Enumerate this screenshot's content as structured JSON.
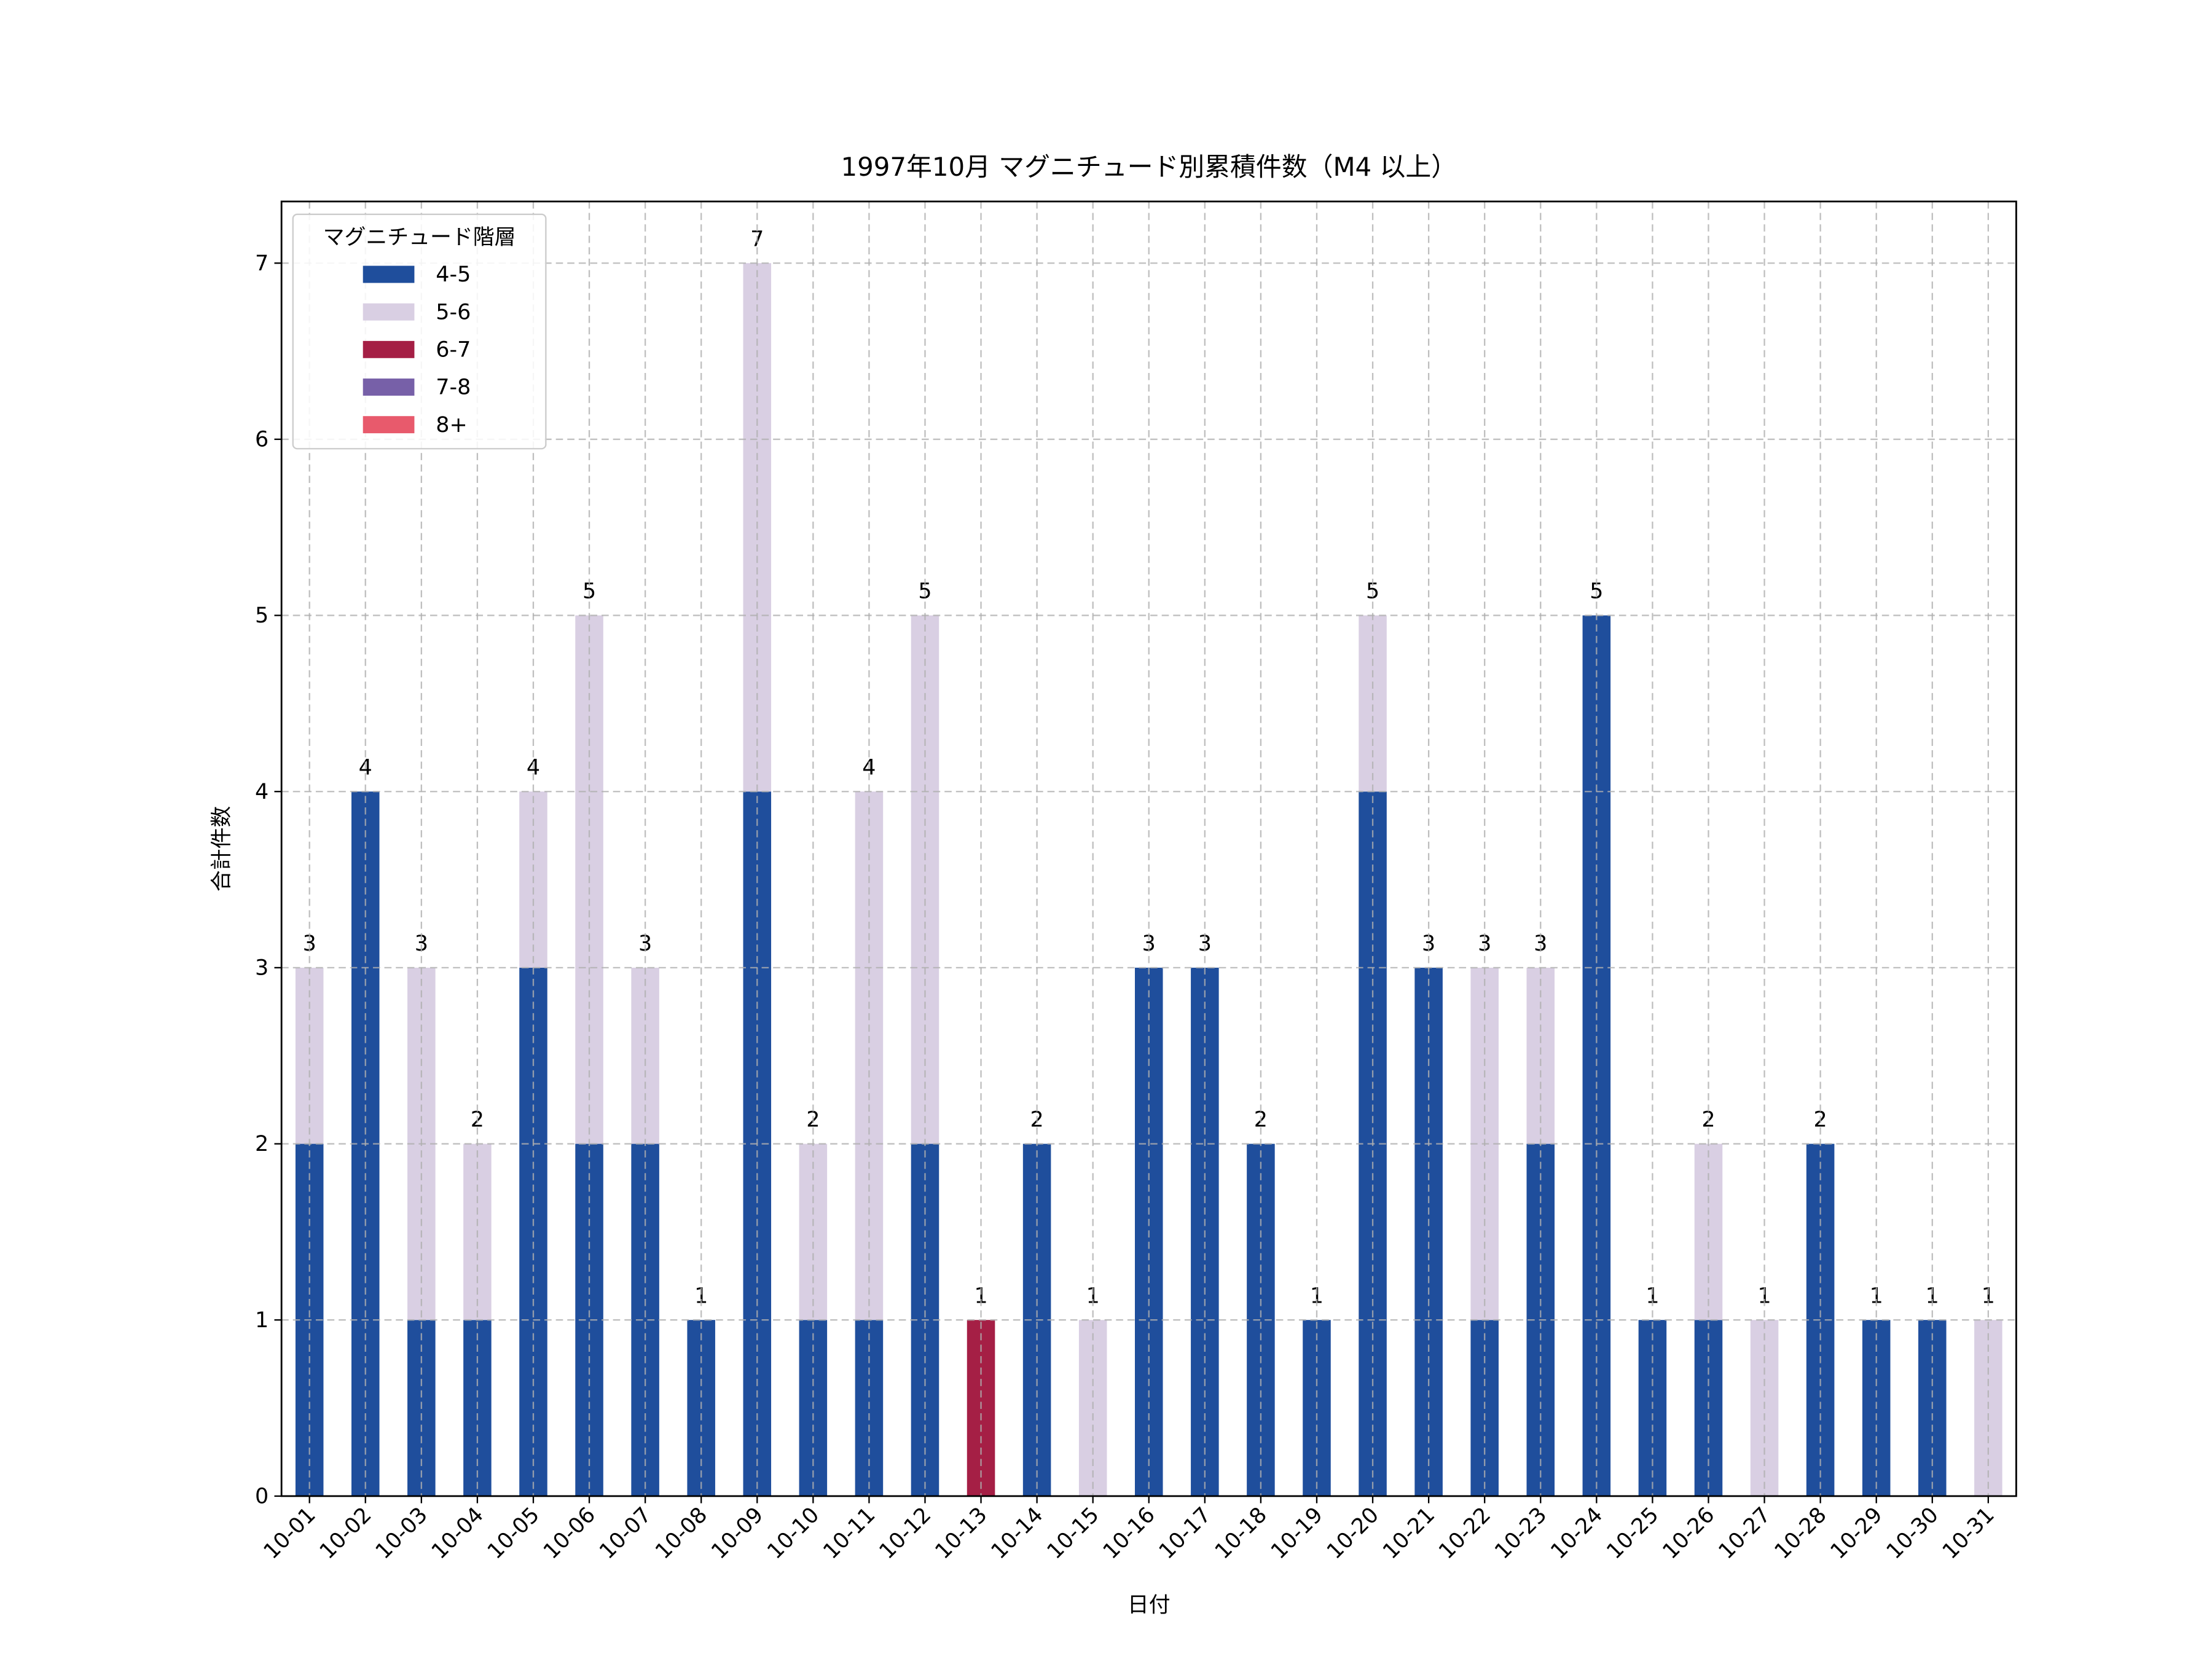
{
  "chart_data": {
    "type": "stacked_bar",
    "title": "1997年10月 マグニチュード別累積件数（M4 以上）",
    "x_label": "日付",
    "y_label": "合計件数",
    "categories": [
      "10-01",
      "10-02",
      "10-03",
      "10-04",
      "10-05",
      "10-06",
      "10-07",
      "10-08",
      "10-09",
      "10-10",
      "10-11",
      "10-12",
      "10-13",
      "10-14",
      "10-15",
      "10-16",
      "10-17",
      "10-18",
      "10-19",
      "10-20",
      "10-21",
      "10-22",
      "10-23",
      "10-24",
      "10-25",
      "10-26",
      "10-27",
      "10-28",
      "10-29",
      "10-30",
      "10-31"
    ],
    "series": [
      {
        "name": "4-5",
        "color": "#1f4e9c",
        "values": [
          2,
          4,
          1,
          1,
          3,
          2,
          2,
          1,
          4,
          1,
          1,
          2,
          0,
          2,
          0,
          3,
          3,
          2,
          1,
          4,
          3,
          1,
          2,
          5,
          1,
          1,
          0,
          2,
          1,
          1,
          0
        ]
      },
      {
        "name": "5-6",
        "color": "#d9cfe3",
        "values": [
          1,
          0,
          2,
          1,
          1,
          3,
          1,
          0,
          3,
          1,
          3,
          3,
          0,
          0,
          1,
          0,
          0,
          0,
          0,
          1,
          0,
          2,
          1,
          0,
          0,
          1,
          1,
          0,
          0,
          0,
          1
        ]
      },
      {
        "name": "6-7",
        "color": "#a51f45",
        "values": [
          0,
          0,
          0,
          0,
          0,
          0,
          0,
          0,
          0,
          0,
          0,
          0,
          1,
          0,
          0,
          0,
          0,
          0,
          0,
          0,
          0,
          0,
          0,
          0,
          0,
          0,
          0,
          0,
          0,
          0,
          0
        ]
      },
      {
        "name": "7-8",
        "color": "#7760a8",
        "values": [
          0,
          0,
          0,
          0,
          0,
          0,
          0,
          0,
          0,
          0,
          0,
          0,
          0,
          0,
          0,
          0,
          0,
          0,
          0,
          0,
          0,
          0,
          0,
          0,
          0,
          0,
          0,
          0,
          0,
          0,
          0
        ]
      },
      {
        "name": "8+",
        "color": "#e85a6c",
        "values": [
          0,
          0,
          0,
          0,
          0,
          0,
          0,
          0,
          0,
          0,
          0,
          0,
          0,
          0,
          0,
          0,
          0,
          0,
          0,
          0,
          0,
          0,
          0,
          0,
          0,
          0,
          0,
          0,
          0,
          0,
          0
        ]
      }
    ],
    "totals": [
      3,
      4,
      3,
      2,
      4,
      5,
      3,
      1,
      7,
      2,
      4,
      5,
      1,
      2,
      1,
      3,
      3,
      2,
      1,
      5,
      3,
      3,
      3,
      5,
      1,
      2,
      1,
      2,
      1,
      1,
      1
    ],
    "ylim": [
      0,
      7.35
    ],
    "yticks": [
      0,
      1,
      2,
      3,
      4,
      5,
      6,
      7
    ],
    "grid": true,
    "legend_title": "マグニチュード階層",
    "legend_loc": "upper left"
  }
}
